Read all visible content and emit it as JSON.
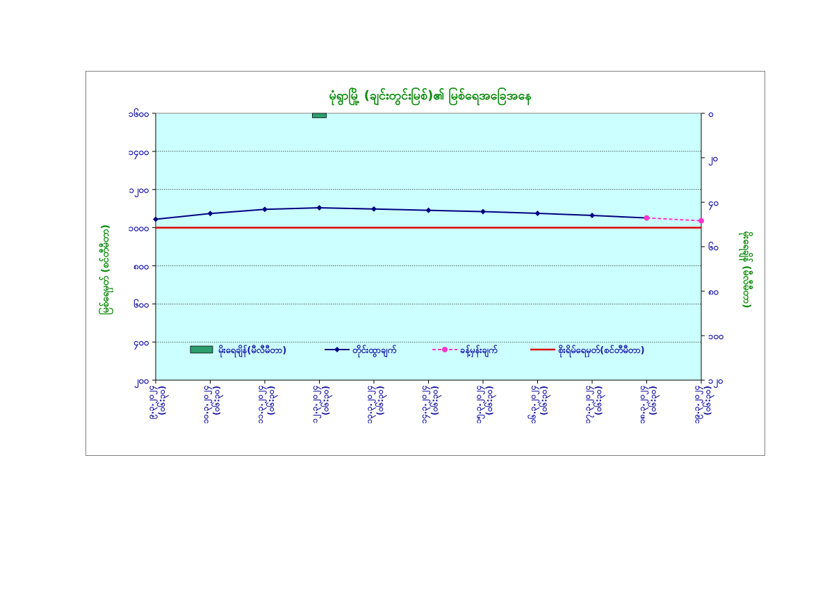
{
  "colors": {
    "plot_bg": "#ccffff",
    "title": "#0b8a0b",
    "axis_text": "#1a1aa6",
    "axis_title": "#0b8a0b",
    "observed": "#000080",
    "forecast": "#ff33cc",
    "danger": "#e00000",
    "rain": "#2e9e6e",
    "grid": "#000000"
  },
  "chart_data": {
    "type": "line",
    "title": "မုံရွာမြို့ (ချင်းတွင်းမြစ်)၏ မြစ်ရေအခြေအနေ",
    "ylabel": "မြစ်ရေမှတ် (စင်တီမီတာ)",
    "y2label": "မိုးရေချိန် (မီလီမီတာ)",
    "ylim": [
      200,
      1600
    ],
    "y_ticks": [
      "၂၀၀",
      "၄၀၀",
      "၆၀၀",
      "၈၀၀",
      "၁၀၀၀",
      "၁၂၀၀",
      "၁၄၀၀",
      "၁၆၀၀"
    ],
    "y_tick_values": [
      200,
      400,
      600,
      800,
      1000,
      1200,
      1400,
      1600
    ],
    "y2lim": [
      0,
      120
    ],
    "y2_inverted": true,
    "y2_ticks": [
      "၀",
      "၂၀",
      "၄၀",
      "၆၀",
      "၈၀",
      "၁၀၀",
      "၁၂၀"
    ],
    "y2_tick_values": [
      0,
      20,
      40,
      60,
      80,
      100,
      120
    ],
    "categories": [
      {
        "date": "၉.၃.၂၀၂၄",
        "time": "(၀၆:၃၀)"
      },
      {
        "date": "၁၀.၃.၂၀၂၄",
        "time": "(၀၆:၃၀)"
      },
      {
        "date": "၁၁.၃.၂၀၂၄",
        "time": "(၀၆:၃၀)"
      },
      {
        "date": "၁၂.၃.၂၀၂၄",
        "time": "(၀၆:၃၀)"
      },
      {
        "date": "၁၃.၃.၂၀၂၄",
        "time": "(၀၆:၃၀)"
      },
      {
        "date": "၁၄.၃.၂၀၂၄",
        "time": "(၀၆:၃၀)"
      },
      {
        "date": "၁၅.၃.၂၀၂၄",
        "time": "(၀၆:၃၀)"
      },
      {
        "date": "၁၆.၃.၂၀၂၄",
        "time": "(၀၆:၃၀)"
      },
      {
        "date": "၁၇.၃.၂၀၂၄",
        "time": "(၀၆:၃၀)"
      },
      {
        "date": "၁၈.၃.၂၀၂၄",
        "time": "(၀၆:၃၀)"
      },
      {
        "date": "၁၉.၃.၂၀၂၄",
        "time": "(၀၆:၃၀)"
      }
    ],
    "series": [
      {
        "name": "မိုးရေချိန်(မီလီမီတာ)",
        "kind": "bar",
        "axis": "y2",
        "values": [
          null,
          null,
          null,
          2,
          null,
          null,
          null,
          null,
          null,
          null,
          null
        ]
      },
      {
        "name": "တိုင်းထွာချက်",
        "kind": "line",
        "axis": "y",
        "values": [
          1044,
          1074,
          1096,
          1104,
          1098,
          1091,
          1084,
          1075,
          1064,
          1051,
          null
        ]
      },
      {
        "name": "ခန့်မှန်းချက်",
        "kind": "line-dashed",
        "axis": "y",
        "values": [
          null,
          null,
          null,
          null,
          null,
          null,
          null,
          null,
          null,
          1051,
          1036
        ]
      },
      {
        "name": "စိုးရိမ်ရေမှတ်(စင်တီမီတာ)",
        "kind": "reference",
        "axis": "y",
        "values": [
          1000,
          1000,
          1000,
          1000,
          1000,
          1000,
          1000,
          1000,
          1000,
          1000,
          1000
        ]
      }
    ],
    "grid": true,
    "legend_position": "bottom-inside"
  }
}
